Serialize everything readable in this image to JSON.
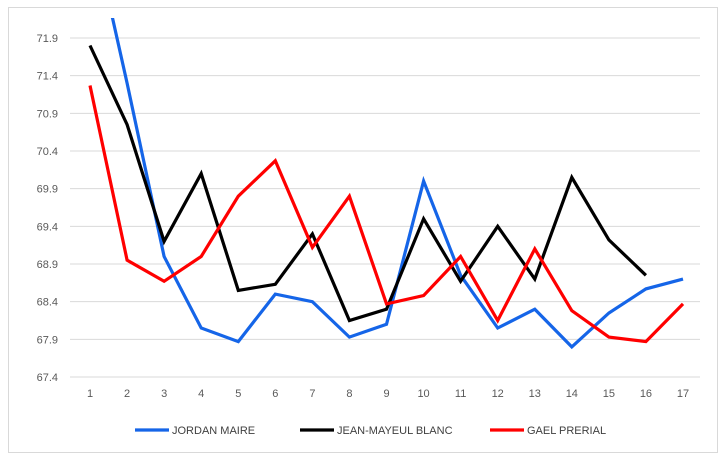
{
  "chart_data": {
    "type": "line",
    "title": "",
    "xlabel": "",
    "ylabel": "",
    "x": [
      1,
      2,
      3,
      4,
      5,
      6,
      7,
      8,
      9,
      10,
      11,
      12,
      13,
      14,
      15,
      16,
      17
    ],
    "ylim": [
      67.4,
      72.15
    ],
    "y_ticks": [
      "67.4",
      "67.9",
      "68.4",
      "68.9",
      "69.4",
      "69.9",
      "70.4",
      "70.9",
      "71.4",
      "71.9"
    ],
    "x_ticks": [
      "1",
      "2",
      "3",
      "4",
      "5",
      "6",
      "7",
      "8",
      "9",
      "10",
      "11",
      "12",
      "13",
      "14",
      "15",
      "16",
      "17"
    ],
    "grid": "horizontal",
    "legend_position": "bottom",
    "series": [
      {
        "name": "JORDAN MAIRE",
        "color": "#1565e8",
        "values": [
          73.5,
          71.3,
          69.0,
          68.05,
          67.87,
          68.5,
          68.4,
          67.93,
          68.1,
          70.0,
          68.75,
          68.05,
          68.3,
          67.8,
          68.25,
          68.57,
          68.7
        ]
      },
      {
        "name": "JEAN-MAYEUL BLANC",
        "color": "#000000",
        "values": [
          71.8,
          70.75,
          69.2,
          70.1,
          68.55,
          68.63,
          69.3,
          68.15,
          68.3,
          69.5,
          68.67,
          69.4,
          68.7,
          70.05,
          69.22,
          68.75,
          null
        ]
      },
      {
        "name": "GAEL PRERIAL",
        "color": "#ff0000",
        "values": [
          71.27,
          68.95,
          68.67,
          69.0,
          69.8,
          70.27,
          69.12,
          69.8,
          68.37,
          68.48,
          69.0,
          68.15,
          69.1,
          68.28,
          67.93,
          67.87,
          68.37
        ]
      }
    ]
  }
}
